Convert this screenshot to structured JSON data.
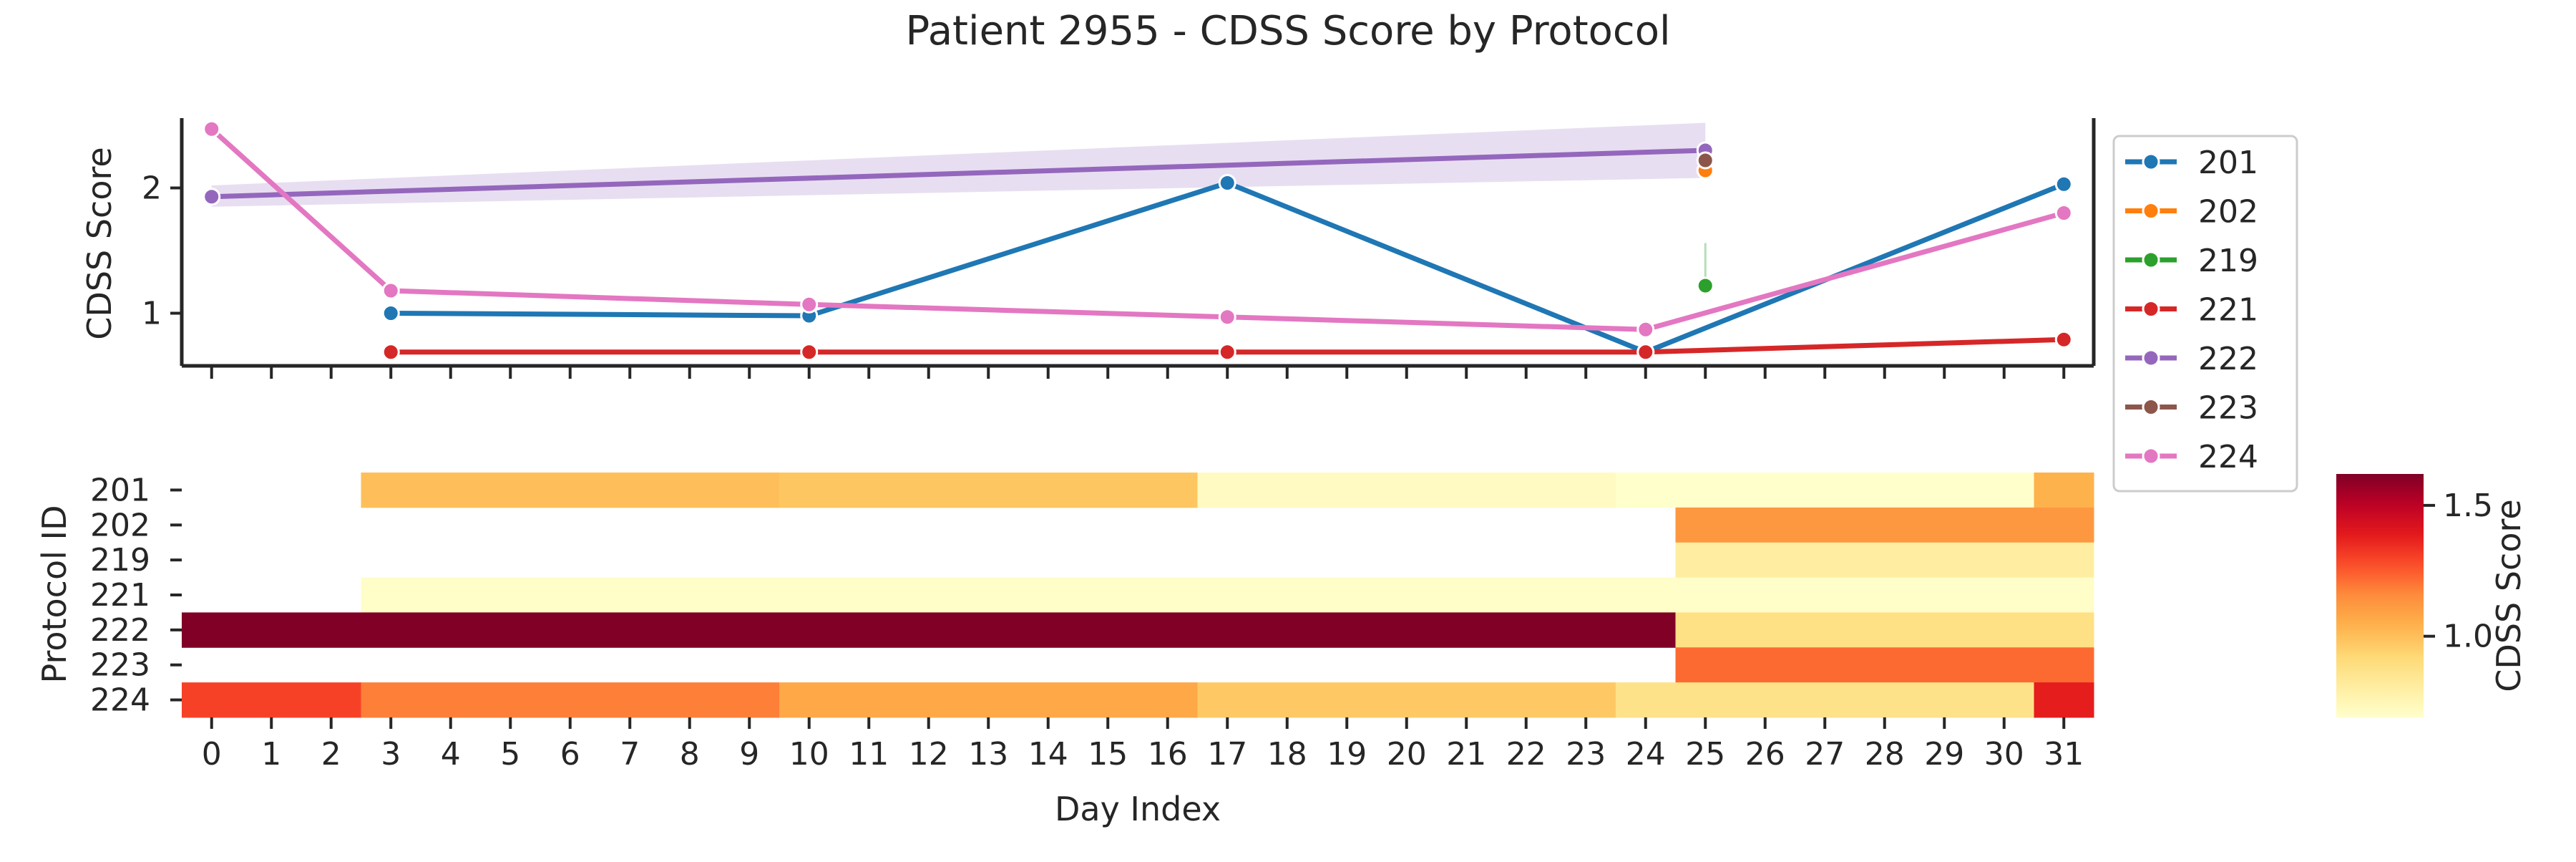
{
  "chart_data": {
    "title": "Patient 2955 - CDSS Score by Protocol",
    "colors": {
      "201": "#1f77b4",
      "202": "#ff7f0e",
      "219": "#2ca02c",
      "221": "#d62728",
      "222": "#9467bd",
      "223": "#8c564b",
      "224": "#e377c2"
    },
    "line_plot": {
      "type": "line",
      "ylabel": "CDSS Score",
      "xlim": [
        0,
        31
      ],
      "ylim": [
        0.58,
        2.7
      ],
      "yticks": [
        "1",
        "2"
      ],
      "series": [
        {
          "name": "201",
          "x": [
            3,
            10,
            17,
            24,
            31
          ],
          "y": [
            1.0,
            0.98,
            2.04,
            0.69,
            2.03
          ]
        },
        {
          "name": "202",
          "x": [
            25
          ],
          "y": [
            2.14
          ]
        },
        {
          "name": "219",
          "x": [
            25
          ],
          "y": [
            1.22
          ]
        },
        {
          "name": "221",
          "x": [
            3,
            10,
            17,
            24,
            31
          ],
          "y": [
            0.69,
            0.69,
            0.69,
            0.69,
            0.79
          ]
        },
        {
          "name": "222",
          "x": [
            0,
            25
          ],
          "y": [
            1.93,
            2.3
          ],
          "band_low": [
            1.85,
            2.08
          ],
          "band_high": [
            2.02,
            2.52
          ]
        },
        {
          "name": "223",
          "x": [
            25
          ],
          "y": [
            2.22
          ]
        },
        {
          "name": "224",
          "x": [
            0,
            3,
            10,
            17,
            24,
            31
          ],
          "y": [
            2.47,
            1.18,
            1.07,
            0.97,
            0.87,
            1.8
          ]
        }
      ],
      "legend": {
        "placement": "outside-right",
        "entries": [
          "201",
          "202",
          "219",
          "221",
          "222",
          "223",
          "224"
        ]
      }
    },
    "heatmap": {
      "type": "heatmap",
      "xlabel": "Day Index",
      "ylabel": "Protocol ID",
      "x_ticks": [
        "0",
        "1",
        "2",
        "3",
        "4",
        "5",
        "6",
        "7",
        "8",
        "9",
        "10",
        "11",
        "12",
        "13",
        "14",
        "15",
        "16",
        "17",
        "18",
        "19",
        "20",
        "21",
        "22",
        "23",
        "24",
        "25",
        "26",
        "27",
        "28",
        "29",
        "30",
        "31"
      ],
      "rows": [
        "201",
        "202",
        "219",
        "221",
        "222",
        "223",
        "224"
      ],
      "segments": [
        [
          {
            "from": 3,
            "to": 9,
            "value": 1.0
          },
          {
            "from": 10,
            "to": 16,
            "value": 0.98
          },
          {
            "from": 17,
            "to": 23,
            "value": 0.72
          },
          {
            "from": 24,
            "to": 30,
            "value": 0.69
          },
          {
            "from": 31,
            "to": 31,
            "value": 1.04
          }
        ],
        [
          {
            "from": 25,
            "to": 31,
            "value": 1.12
          }
        ],
        [
          {
            "from": 25,
            "to": 31,
            "value": 0.8
          }
        ],
        [
          {
            "from": 3,
            "to": 31,
            "value": 0.7
          }
        ],
        [
          {
            "from": 0,
            "to": 24,
            "value": 1.62
          },
          {
            "from": 25,
            "to": 31,
            "value": 0.88
          }
        ],
        [
          {
            "from": 25,
            "to": 31,
            "value": 1.22
          }
        ],
        [
          {
            "from": 0,
            "to": 2,
            "value": 1.3
          },
          {
            "from": 3,
            "to": 9,
            "value": 1.18
          },
          {
            "from": 10,
            "to": 16,
            "value": 1.07
          },
          {
            "from": 17,
            "to": 23,
            "value": 0.97
          },
          {
            "from": 24,
            "to": 30,
            "value": 0.87
          },
          {
            "from": 31,
            "to": 31,
            "value": 1.38
          }
        ]
      ],
      "colorbar": {
        "label": "CDSS Score",
        "range": [
          0.69,
          1.62
        ],
        "ticks": [
          {
            "value": 1.0,
            "label": "1.0"
          },
          {
            "value": 1.5,
            "label": "1.5"
          }
        ],
        "colormap": "YlOrRd"
      }
    }
  }
}
